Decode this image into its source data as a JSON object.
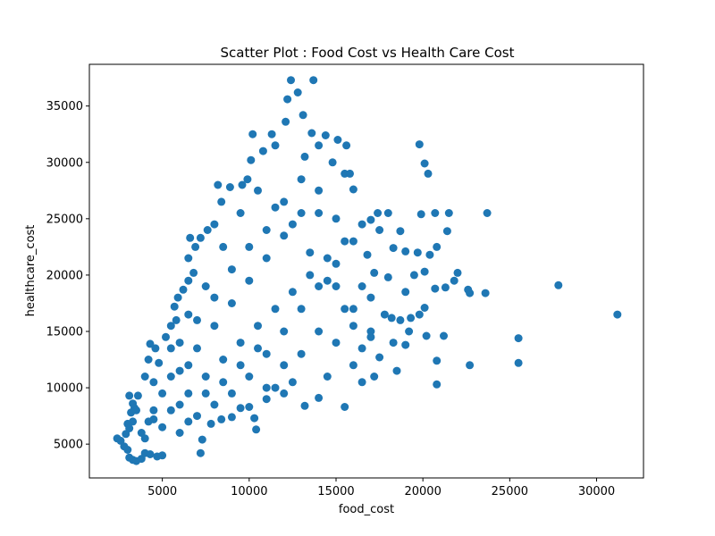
{
  "chart_data": {
    "type": "scatter",
    "title": "Scatter Plot : Food Cost vs Health Care Cost",
    "xlabel": "food_cost",
    "ylabel": "healthcare_cost",
    "xlim": [
      800,
      32700
    ],
    "ylim": [
      2000,
      38700
    ],
    "xticks": [
      5000,
      10000,
      15000,
      20000,
      25000,
      30000
    ],
    "yticks": [
      5000,
      10000,
      15000,
      20000,
      25000,
      30000,
      35000
    ],
    "grid": false,
    "legend": "none",
    "marker_color": "#1f77b4",
    "series": [
      {
        "points": [
          [
            2400,
            5500
          ],
          [
            2600,
            5300
          ],
          [
            2800,
            4800
          ],
          [
            3000,
            4500
          ],
          [
            3100,
            3800
          ],
          [
            3300,
            3600
          ],
          [
            3500,
            3500
          ],
          [
            3800,
            3700
          ],
          [
            4000,
            4200
          ],
          [
            4300,
            4100
          ],
          [
            4700,
            3900
          ],
          [
            5000,
            4000
          ],
          [
            2900,
            5900
          ],
          [
            3100,
            6400
          ],
          [
            3300,
            7000
          ],
          [
            3200,
            7800
          ],
          [
            3300,
            8600
          ],
          [
            3100,
            9300
          ],
          [
            3600,
            9300
          ],
          [
            3400,
            8200
          ],
          [
            3800,
            6000
          ],
          [
            4200,
            7000
          ],
          [
            4500,
            8000
          ],
          [
            4000,
            11000
          ],
          [
            4200,
            12500
          ],
          [
            4300,
            13900
          ],
          [
            4600,
            13500
          ],
          [
            4800,
            12200
          ],
          [
            5200,
            14500
          ],
          [
            5500,
            15500
          ],
          [
            5800,
            16000
          ],
          [
            5700,
            17200
          ],
          [
            5900,
            18000
          ],
          [
            6200,
            18700
          ],
          [
            6500,
            19500
          ],
          [
            6800,
            20200
          ],
          [
            6500,
            21500
          ],
          [
            6900,
            22500
          ],
          [
            6600,
            23300
          ],
          [
            7200,
            23300
          ],
          [
            7600,
            24000
          ],
          [
            8000,
            24500
          ],
          [
            8400,
            26500
          ],
          [
            8200,
            28000
          ],
          [
            8900,
            27800
          ],
          [
            9600,
            28000
          ],
          [
            9900,
            28500
          ],
          [
            10100,
            30200
          ],
          [
            10200,
            32500
          ],
          [
            10800,
            31000
          ],
          [
            11300,
            32500
          ],
          [
            11500,
            31500
          ],
          [
            12100,
            33600
          ],
          [
            12200,
            35600
          ],
          [
            12400,
            37300
          ],
          [
            12800,
            36200
          ],
          [
            13100,
            34200
          ],
          [
            13700,
            37300
          ],
          [
            13600,
            32600
          ],
          [
            13200,
            30500
          ],
          [
            14000,
            31500
          ],
          [
            14400,
            32400
          ],
          [
            15100,
            32000
          ],
          [
            15600,
            31500
          ],
          [
            15500,
            29000
          ],
          [
            14800,
            30000
          ],
          [
            16000,
            27600
          ],
          [
            15800,
            29000
          ],
          [
            6000,
            6000
          ],
          [
            6500,
            7000
          ],
          [
            7200,
            4200
          ],
          [
            7300,
            5400
          ],
          [
            7800,
            6800
          ],
          [
            8400,
            7200
          ],
          [
            9000,
            7400
          ],
          [
            9500,
            8200
          ],
          [
            10000,
            8300
          ],
          [
            10300,
            7300
          ],
          [
            10400,
            6300
          ],
          [
            11000,
            9000
          ],
          [
            11500,
            10000
          ],
          [
            12000,
            9500
          ],
          [
            12500,
            10500
          ],
          [
            13200,
            8400
          ],
          [
            14000,
            9100
          ],
          [
            14500,
            11000
          ],
          [
            15500,
            8300
          ],
          [
            16500,
            10500
          ],
          [
            17200,
            11000
          ],
          [
            17500,
            12700
          ],
          [
            18500,
            11500
          ],
          [
            19000,
            13800
          ],
          [
            16500,
            13500
          ],
          [
            17000,
            15000
          ],
          [
            17800,
            16500
          ],
          [
            18200,
            16200
          ],
          [
            18700,
            16000
          ],
          [
            19300,
            16200
          ],
          [
            19800,
            16500
          ],
          [
            20100,
            17100
          ],
          [
            19000,
            18500
          ],
          [
            19500,
            20000
          ],
          [
            19700,
            22000
          ],
          [
            20100,
            20300
          ],
          [
            20400,
            21800
          ],
          [
            20800,
            22500
          ],
          [
            21400,
            23900
          ],
          [
            21300,
            18900
          ],
          [
            21800,
            19500
          ],
          [
            22000,
            20200
          ],
          [
            22600,
            18700
          ],
          [
            22700,
            18400
          ],
          [
            23600,
            18400
          ],
          [
            23700,
            25500
          ],
          [
            21500,
            25500
          ],
          [
            20700,
            18800
          ],
          [
            19800,
            31600
          ],
          [
            20100,
            29900
          ],
          [
            20300,
            29000
          ],
          [
            20700,
            25500
          ],
          [
            19900,
            25400
          ],
          [
            18000,
            25500
          ],
          [
            17400,
            25500
          ],
          [
            17000,
            24900
          ],
          [
            17500,
            24000
          ],
          [
            18300,
            22400
          ],
          [
            19000,
            22100
          ],
          [
            18700,
            23900
          ],
          [
            16800,
            21800
          ],
          [
            17200,
            20200
          ],
          [
            18000,
            19800
          ],
          [
            16500,
            19000
          ],
          [
            20200,
            14600
          ],
          [
            20800,
            12400
          ],
          [
            20800,
            10300
          ],
          [
            21200,
            14600
          ],
          [
            22700,
            12000
          ],
          [
            25500,
            14400
          ],
          [
            25500,
            12200
          ],
          [
            27800,
            19100
          ],
          [
            31200,
            16500
          ],
          [
            19200,
            15000
          ],
          [
            18300,
            14000
          ],
          [
            17000,
            14500
          ],
          [
            16000,
            15500
          ],
          [
            15500,
            17000
          ],
          [
            14500,
            19500
          ],
          [
            13500,
            22000
          ],
          [
            12500,
            24500
          ],
          [
            11500,
            26000
          ],
          [
            10500,
            27500
          ],
          [
            9500,
            25500
          ],
          [
            8500,
            22500
          ],
          [
            7500,
            19000
          ],
          [
            6500,
            16500
          ],
          [
            5500,
            13500
          ],
          [
            4500,
            10500
          ],
          [
            3500,
            8000
          ],
          [
            5000,
            9500
          ],
          [
            6000,
            11500
          ],
          [
            7000,
            13500
          ],
          [
            8000,
            15500
          ],
          [
            9000,
            17500
          ],
          [
            10000,
            19500
          ],
          [
            11000,
            21500
          ],
          [
            12000,
            23500
          ],
          [
            13000,
            25500
          ],
          [
            14000,
            27500
          ],
          [
            15000,
            25000
          ],
          [
            16000,
            23000
          ],
          [
            15000,
            21000
          ],
          [
            14000,
            19000
          ],
          [
            13000,
            17000
          ],
          [
            12000,
            15000
          ],
          [
            11000,
            13000
          ],
          [
            10000,
            11000
          ],
          [
            9000,
            9500
          ],
          [
            8000,
            8500
          ],
          [
            7000,
            7500
          ],
          [
            6000,
            8500
          ],
          [
            5000,
            6500
          ],
          [
            4000,
            5500
          ],
          [
            3000,
            6800
          ],
          [
            4500,
            7200
          ],
          [
            5500,
            8000
          ],
          [
            6500,
            9500
          ],
          [
            7500,
            11000
          ],
          [
            8500,
            12500
          ],
          [
            9500,
            14000
          ],
          [
            10500,
            15500
          ],
          [
            11500,
            17000
          ],
          [
            12500,
            18500
          ],
          [
            13500,
            20000
          ],
          [
            14500,
            21500
          ],
          [
            15500,
            23000
          ],
          [
            16500,
            24500
          ],
          [
            9000,
            20500
          ],
          [
            8000,
            18000
          ],
          [
            7000,
            16000
          ],
          [
            6000,
            14000
          ],
          [
            10000,
            22500
          ],
          [
            11000,
            24000
          ],
          [
            12000,
            26500
          ],
          [
            13000,
            28500
          ],
          [
            14000,
            25500
          ],
          [
            15000,
            19000
          ],
          [
            16000,
            17000
          ],
          [
            17000,
            18000
          ],
          [
            12000,
            12000
          ],
          [
            11000,
            10000
          ],
          [
            13000,
            13000
          ],
          [
            14000,
            15000
          ],
          [
            15000,
            14000
          ],
          [
            16000,
            12000
          ],
          [
            7500,
            9500
          ],
          [
            8500,
            10500
          ],
          [
            9500,
            12000
          ],
          [
            10500,
            13500
          ],
          [
            6500,
            12000
          ],
          [
            5500,
            11000
          ]
        ]
      }
    ]
  }
}
